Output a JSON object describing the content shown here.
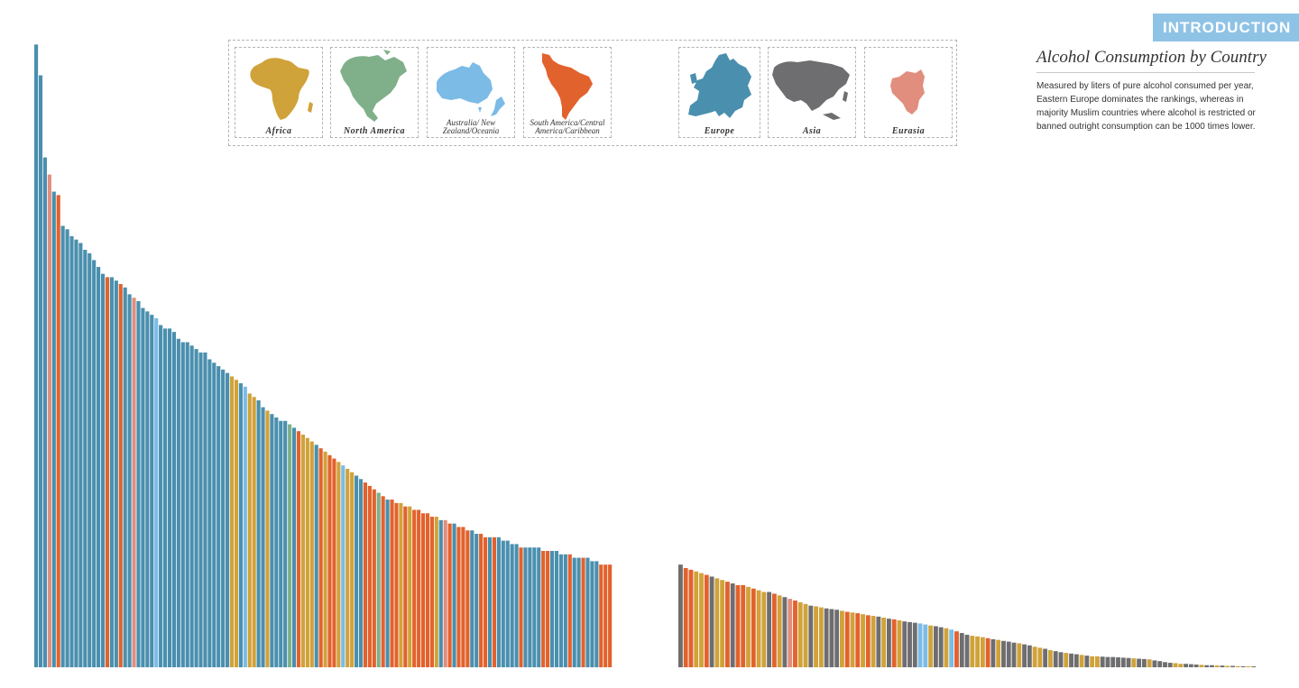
{
  "header": {
    "badge": "INTRODUCTION",
    "title": "Alcohol Consumption by Country",
    "description": "Measured by liters of pure alcohol consumed per year, Eastern Europe dominates the rankings, whereas in majority Muslim countries where alcohol is restricted or banned outright consumption can be 1000 times lower."
  },
  "legend": [
    {
      "key": "africa",
      "label": "Africa",
      "color": "#d0a23a",
      "icon": "africa-map-icon"
    },
    {
      "key": "north_america",
      "label": "North America",
      "color": "#7fb08a",
      "icon": "north-america-map-icon"
    },
    {
      "key": "oceania",
      "label": "Australia/ New Zealand/Oceania",
      "color": "#7bbbe6",
      "icon": "australia-map-icon"
    },
    {
      "key": "south_america",
      "label": "South America/Central America/Caribbean",
      "color": "#e2622d",
      "icon": "south-america-map-icon"
    },
    {
      "key": "europe",
      "label": "Europe",
      "color": "#4a8fae",
      "icon": "europe-map-icon"
    },
    {
      "key": "asia",
      "label": "Asia",
      "color": "#6e6e70",
      "icon": "asia-map-icon"
    },
    {
      "key": "eurasia",
      "label": "Eurasia",
      "color": "#e18e7e",
      "icon": "eurasia-map-icon"
    }
  ],
  "chart_data": [
    {
      "type": "bar",
      "title": "",
      "ylabel": "",
      "ylim": [
        0,
        18.5
      ],
      "color_key": {
        "EU": "#4a8fae",
        "EA": "#e18e7e",
        "SA": "#e2622d",
        "AF": "#d0a23a",
        "NA": "#7fb08a",
        "OC": "#7bbbe6",
        "AS": "#6e6e70"
      },
      "values": [
        18.2,
        17.3,
        14.9,
        14.4,
        13.9,
        13.8,
        12.9,
        12.8,
        12.6,
        12.5,
        12.4,
        12.2,
        12.1,
        11.9,
        11.7,
        11.5,
        11.4,
        11.4,
        11.3,
        11.2,
        11.1,
        10.9,
        10.8,
        10.7,
        10.5,
        10.4,
        10.3,
        10.2,
        10.0,
        9.9,
        9.9,
        9.8,
        9.6,
        9.5,
        9.5,
        9.4,
        9.3,
        9.2,
        9.2,
        9.0,
        8.9,
        8.8,
        8.7,
        8.6,
        8.5,
        8.4,
        8.3,
        8.2,
        8.0,
        7.9,
        7.8,
        7.6,
        7.5,
        7.4,
        7.3,
        7.2,
        7.2,
        7.1,
        7.0,
        6.9,
        6.8,
        6.7,
        6.6,
        6.5,
        6.4,
        6.3,
        6.2,
        6.1,
        6.0,
        5.9,
        5.8,
        5.7,
        5.6,
        5.5,
        5.4,
        5.3,
        5.2,
        5.1,
        5.0,
        4.9,
        4.9,
        4.8,
        4.8,
        4.7,
        4.7,
        4.6,
        4.6,
        4.5,
        4.5,
        4.4,
        4.4,
        4.3,
        4.3,
        4.2,
        4.2,
        4.1,
        4.1,
        4.0,
        4.0,
        3.9,
        3.9,
        3.8,
        3.8,
        3.8,
        3.8,
        3.7,
        3.7,
        3.6,
        3.6,
        3.5,
        3.5,
        3.5,
        3.5,
        3.5,
        3.4,
        3.4,
        3.4,
        3.4,
        3.3,
        3.3,
        3.3,
        3.2,
        3.2,
        3.2,
        3.2,
        3.1,
        3.1,
        3.0,
        3.0,
        3.0
      ],
      "regions": [
        "EU",
        "EU",
        "EU",
        "EA",
        "EU",
        "SA",
        "EU",
        "EU",
        "EU",
        "EU",
        "EU",
        "EU",
        "EU",
        "EU",
        "EU",
        "EU",
        "SA",
        "EU",
        "EU",
        "SA",
        "EU",
        "EU",
        "EA",
        "EU",
        "EU",
        "EU",
        "EU",
        "OC",
        "EU",
        "EU",
        "EU",
        "EU",
        "EU",
        "EU",
        "EU",
        "EU",
        "EU",
        "EU",
        "EU",
        "EU",
        "EU",
        "EU",
        "EU",
        "EU",
        "AF",
        "AF",
        "EU",
        "OC",
        "AF",
        "AF",
        "EU",
        "EU",
        "AF",
        "EU",
        "EU",
        "EU",
        "EU",
        "NA",
        "EU",
        "SA",
        "AF",
        "AF",
        "AF",
        "EU",
        "SA",
        "AF",
        "SA",
        "SA",
        "AF",
        "OC",
        "AF",
        "AF",
        "EU",
        "EU",
        "SA",
        "SA",
        "SA",
        "NA",
        "SA",
        "EU",
        "SA",
        "SA",
        "AF",
        "SA",
        "AF",
        "SA",
        "SA",
        "SA",
        "SA",
        "SA",
        "AF",
        "EU",
        "EA",
        "SA",
        "EU",
        "SA",
        "SA",
        "SA",
        "EU",
        "EU",
        "SA",
        "SA",
        "EU",
        "SA",
        "EU",
        "EU",
        "EU",
        "EU",
        "EU",
        "SA",
        "EU",
        "EU",
        "EU",
        "EU",
        "SA",
        "SA",
        "EU",
        "EU",
        "EU",
        "EU",
        "SA",
        "EU",
        "EU",
        "SA",
        "EU",
        "EU",
        "EU",
        "SA",
        "SA",
        "SA"
      ]
    },
    {
      "type": "bar",
      "title": "",
      "ylabel": "",
      "ylim": [
        0,
        18.5
      ],
      "color_key": {
        "EU": "#4a8fae",
        "EA": "#e18e7e",
        "SA": "#e2622d",
        "AF": "#d0a23a",
        "NA": "#7fb08a",
        "OC": "#7bbbe6",
        "AS": "#6e6e70"
      },
      "values": [
        3.0,
        2.9,
        2.85,
        2.8,
        2.75,
        2.7,
        2.65,
        2.6,
        2.55,
        2.5,
        2.45,
        2.4,
        2.4,
        2.35,
        2.3,
        2.25,
        2.2,
        2.2,
        2.15,
        2.1,
        2.05,
        2.0,
        1.95,
        1.9,
        1.85,
        1.8,
        1.78,
        1.75,
        1.72,
        1.7,
        1.68,
        1.65,
        1.62,
        1.6,
        1.58,
        1.55,
        1.52,
        1.5,
        1.48,
        1.45,
        1.42,
        1.4,
        1.37,
        1.34,
        1.32,
        1.3,
        1.28,
        1.25,
        1.22,
        1.2,
        1.17,
        1.14,
        1.1,
        1.05,
        1.0,
        0.95,
        0.92,
        0.9,
        0.88,
        0.85,
        0.82,
        0.8,
        0.77,
        0.75,
        0.72,
        0.7,
        0.67,
        0.64,
        0.6,
        0.57,
        0.54,
        0.5,
        0.47,
        0.44,
        0.42,
        0.4,
        0.38,
        0.36,
        0.34,
        0.32,
        0.32,
        0.31,
        0.3,
        0.3,
        0.29,
        0.28,
        0.27,
        0.26,
        0.25,
        0.24,
        0.23,
        0.2,
        0.18,
        0.15,
        0.13,
        0.12,
        0.1,
        0.1,
        0.09,
        0.08,
        0.07,
        0.06,
        0.06,
        0.05,
        0.05,
        0.04,
        0.04,
        0.03,
        0.03,
        0.02,
        0.02
      ],
      "regions": [
        "AS",
        "SA",
        "SA",
        "AF",
        "AF",
        "SA",
        "AS",
        "AF",
        "AF",
        "SA",
        "AS",
        "SA",
        "SA",
        "AF",
        "SA",
        "AF",
        "AF",
        "AS",
        "SA",
        "AF",
        "AS",
        "EA",
        "SA",
        "AF",
        "AF",
        "AS",
        "AF",
        "AF",
        "AS",
        "AS",
        "AS",
        "AF",
        "SA",
        "AF",
        "SA",
        "AF",
        "SA",
        "AF",
        "AS",
        "AF",
        "AS",
        "SA",
        "AF",
        "AS",
        "AS",
        "AS",
        "OC",
        "OC",
        "AF",
        "AS",
        "AS",
        "AF",
        "OC",
        "SA",
        "AS",
        "AS",
        "AF",
        "AF",
        "AF",
        "SA",
        "AS",
        "AF",
        "AS",
        "AS",
        "AS",
        "AF",
        "AS",
        "AS",
        "AF",
        "AF",
        "AS",
        "AF",
        "AS",
        "AS",
        "AF",
        "AS",
        "AS",
        "AF",
        "AS",
        "AF",
        "AF",
        "AS",
        "AS",
        "AS",
        "AS",
        "AS",
        "AS",
        "AF",
        "AS",
        "AS",
        "AF",
        "AS",
        "AS",
        "AS",
        "AS",
        "AF",
        "AF",
        "AS",
        "AS",
        "AS",
        "AF",
        "AS",
        "AS",
        "AF",
        "AS",
        "AF",
        "AS",
        "AF",
        "AS",
        "AF",
        "AS"
      ]
    }
  ]
}
